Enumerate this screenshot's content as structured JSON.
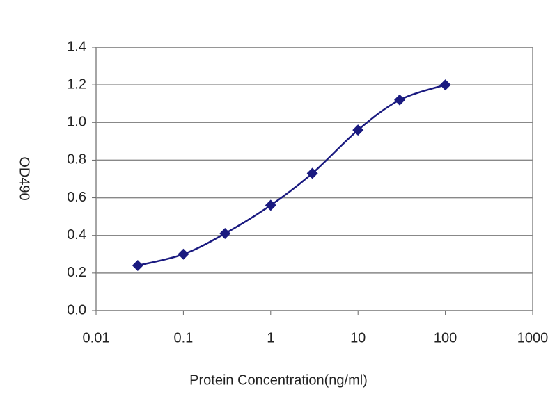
{
  "chart_data": {
    "type": "line",
    "xlabel": "Protein Concentration(ng/ml)",
    "ylabel": "OD490",
    "x": [
      0.03,
      0.1,
      0.3,
      1,
      3,
      10,
      30,
      100
    ],
    "values": [
      0.24,
      0.3,
      0.41,
      0.56,
      0.73,
      0.96,
      1.12,
      1.2
    ],
    "color": "#1a1a80",
    "xscale": "log",
    "xlim": [
      0.01,
      1000
    ],
    "xticks": [
      0.01,
      0.1,
      1,
      10,
      100,
      1000
    ],
    "ylim": [
      0,
      1.4
    ],
    "yticks": [
      {
        "value": 0,
        "label": "0.0"
      },
      0.2,
      0.4,
      0.6,
      0.8,
      {
        "value": 1,
        "label": "1.0"
      },
      1.2,
      1.4
    ],
    "grid": true
  }
}
